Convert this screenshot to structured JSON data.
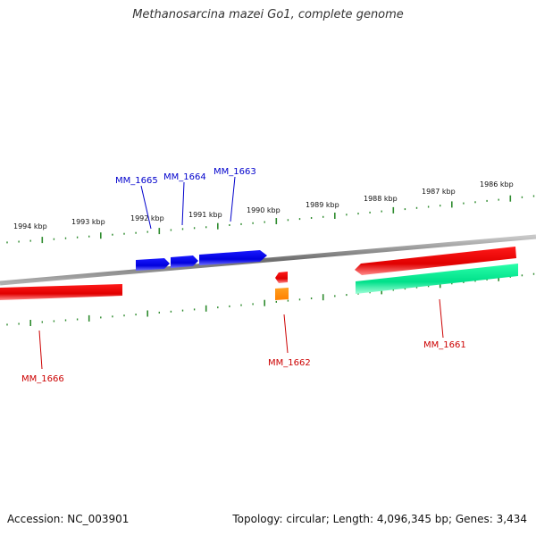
{
  "title": "Methanosarcina mazei Go1, complete genome",
  "footer": {
    "accession": "Accession: NC_003901",
    "summary": "Topology: circular; Length: 4,096,345 bp; Genes: 3,434"
  },
  "colors": {
    "backbone": "#7a7a7a",
    "ticks": "#2e8b2e",
    "forward_gene": "#0000ee",
    "reverse_gene": "#ee0000",
    "reverse_gene_track2": "#00ee99",
    "small_feature": "#ff8800",
    "forward_label": "#0000cc",
    "reverse_label": "#cc0000"
  },
  "kbp_labels": [
    "1994 kbp",
    "1993 kbp",
    "1992 kbp",
    "1991 kbp",
    "1990 kbp",
    "1989 kbp",
    "1988 kbp",
    "1987 kbp",
    "1986 kbp"
  ],
  "genes": [
    {
      "id": "MM_1665",
      "strand": "forward",
      "color": "#0000ee"
    },
    {
      "id": "MM_1664",
      "strand": "forward",
      "color": "#0000ee"
    },
    {
      "id": "MM_1663",
      "strand": "forward",
      "color": "#0000ee"
    },
    {
      "id": "MM_1666",
      "strand": "reverse",
      "color": "#ee0000"
    },
    {
      "id": "MM_1662",
      "strand": "reverse",
      "color": "#ee0000"
    },
    {
      "id": "MM_1661",
      "strand": "reverse",
      "color": "#ee0000"
    }
  ]
}
